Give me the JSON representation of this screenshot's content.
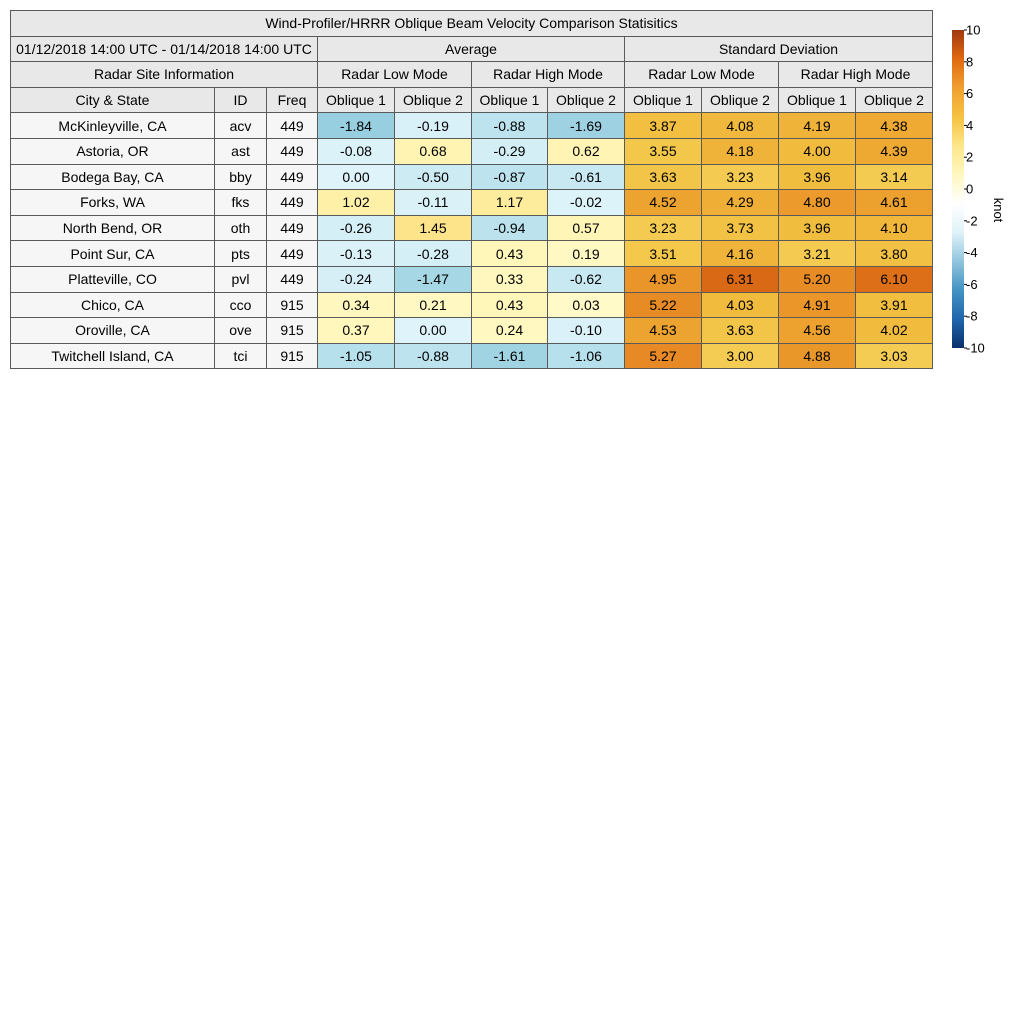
{
  "chart_data": {
    "type": "table",
    "title": "Wind-Profiler/HRRR Oblique Beam Velocity Comparison Statisitics",
    "date_range": "01/12/2018 14:00 UTC - 01/14/2018 14:00 UTC",
    "groups": {
      "average": "Average",
      "std": "Standard Deviation",
      "site_info": "Radar Site Information"
    },
    "modes": [
      "Radar Low Mode",
      "Radar High Mode",
      "Radar Low Mode",
      "Radar High Mode"
    ],
    "columns": [
      "City & State",
      "ID",
      "Freq",
      "Oblique 1",
      "Oblique 2",
      "Oblique 1",
      "Oblique 2",
      "Oblique 1",
      "Oblique 2",
      "Oblique 1",
      "Oblique 2"
    ],
    "rows": [
      {
        "city": "McKinleyville, CA",
        "id": "acv",
        "freq": "449",
        "values": [
          "-1.84",
          "-0.19",
          "-0.88",
          "-1.69",
          "3.87",
          "4.08",
          "4.19",
          "4.38"
        ]
      },
      {
        "city": "Astoria, OR",
        "id": "ast",
        "freq": "449",
        "values": [
          "-0.08",
          "0.68",
          "-0.29",
          "0.62",
          "3.55",
          "4.18",
          "4.00",
          "4.39"
        ]
      },
      {
        "city": "Bodega Bay, CA",
        "id": "bby",
        "freq": "449",
        "values": [
          "0.00",
          "-0.50",
          "-0.87",
          "-0.61",
          "3.63",
          "3.23",
          "3.96",
          "3.14"
        ]
      },
      {
        "city": "Forks, WA",
        "id": "fks",
        "freq": "449",
        "values": [
          "1.02",
          "-0.11",
          "1.17",
          "-0.02",
          "4.52",
          "4.29",
          "4.80",
          "4.61"
        ]
      },
      {
        "city": "North Bend, OR",
        "id": "oth",
        "freq": "449",
        "values": [
          "-0.26",
          "1.45",
          "-0.94",
          "0.57",
          "3.23",
          "3.73",
          "3.96",
          "4.10"
        ]
      },
      {
        "city": "Point Sur, CA",
        "id": "pts",
        "freq": "449",
        "values": [
          "-0.13",
          "-0.28",
          "0.43",
          "0.19",
          "3.51",
          "4.16",
          "3.21",
          "3.80"
        ]
      },
      {
        "city": "Platteville, CO",
        "id": "pvl",
        "freq": "449",
        "values": [
          "-0.24",
          "-1.47",
          "0.33",
          "-0.62",
          "4.95",
          "6.31",
          "5.20",
          "6.10"
        ]
      },
      {
        "city": "Chico, CA",
        "id": "cco",
        "freq": "915",
        "values": [
          "0.34",
          "0.21",
          "0.43",
          "0.03",
          "5.22",
          "4.03",
          "4.91",
          "3.91"
        ]
      },
      {
        "city": "Oroville, CA",
        "id": "ove",
        "freq": "915",
        "values": [
          "0.37",
          "0.00",
          "0.24",
          "-0.10",
          "4.53",
          "3.63",
          "4.56",
          "4.02"
        ]
      },
      {
        "city": "Twitchell Island, CA",
        "id": "tci",
        "freq": "915",
        "values": [
          "-1.05",
          "-0.88",
          "-1.61",
          "-1.06",
          "5.27",
          "3.00",
          "4.88",
          "3.03"
        ]
      }
    ],
    "colorbar": {
      "label": "knot",
      "range": [
        -10,
        10
      ],
      "ticks": [
        10,
        8,
        6,
        4,
        2,
        0,
        -2,
        -4,
        -6,
        -8,
        -10
      ],
      "colors": [
        "#08306b",
        "#2166ac",
        "#4393c3",
        "#92c5de",
        "#dff3f9",
        "#ffffff",
        "#fff7c0",
        "#fde68a",
        "#f5c242",
        "#f0a030",
        "#e06a10",
        "#a0380f"
      ]
    }
  }
}
